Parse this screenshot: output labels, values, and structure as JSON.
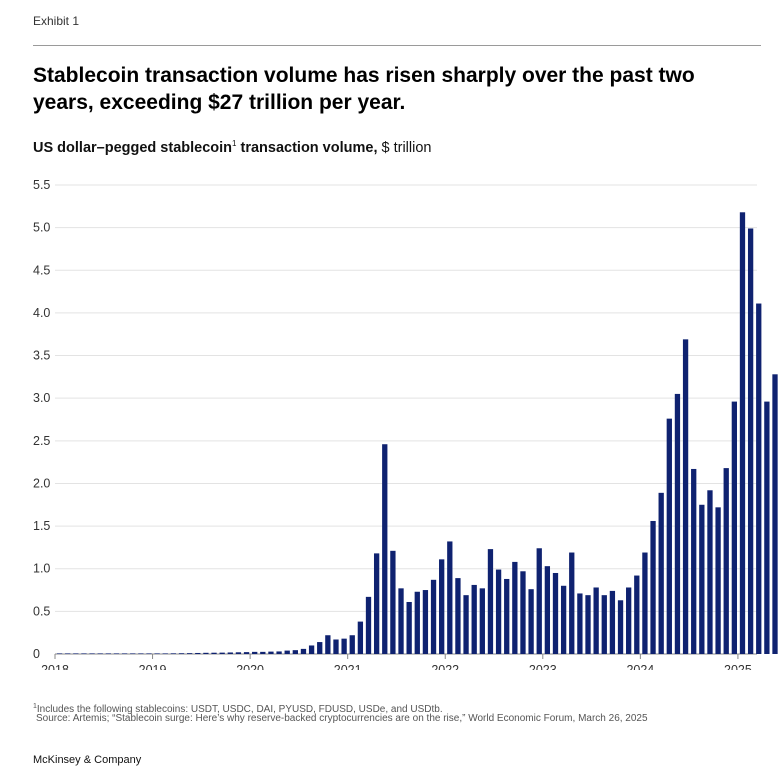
{
  "exhibit_label": "Exhibit 1",
  "headline": "Stablecoin transaction volume has risen sharply over the past two years, exceeding $27 trillion per year.",
  "subtitle_bold": "US dollar–pegged stablecoin",
  "subtitle_sup": "1",
  "subtitle_bold_tail": " transaction volume,",
  "subtitle_unit": " $ trillion",
  "footnote_sup": "1",
  "footnote": "Includes the following stablecoins: USDT, USDC, DAI, PYUSD, FDUSD, USDe, and USDtb.",
  "source": "Source: Artemis; “Stablecoin surge: Here’s why reserve-backed cryptocurrencies are on the rise,” World Economic Forum, March 26, 2025",
  "brand": "McKinsey & Company",
  "colors": {
    "bar": "#0f2270",
    "grid": "#e3e3e3",
    "axis": "#888888"
  },
  "chart_data": {
    "type": "bar",
    "title": "US dollar–pegged stablecoin transaction volume, $ trillion",
    "xlabel": "",
    "ylabel": "$ trillion",
    "ylim": [
      0,
      5.5
    ],
    "yticks": [
      "0",
      "0.5",
      "1.0",
      "1.5",
      "2.0",
      "2.5",
      "3.0",
      "3.5",
      "4.0",
      "4.5",
      "5.0",
      "5.5"
    ],
    "xticks": [
      "2018",
      "2019",
      "2020",
      "2021",
      "2022",
      "2023",
      "2024",
      "2025"
    ],
    "x_start": "2018-01",
    "frequency": "monthly",
    "grid": true,
    "values": [
      0.003,
      0.003,
      0.003,
      0.003,
      0.003,
      0.003,
      0.004,
      0.004,
      0.004,
      0.004,
      0.005,
      0.005,
      0.006,
      0.007,
      0.008,
      0.009,
      0.01,
      0.012,
      0.014,
      0.015,
      0.016,
      0.018,
      0.02,
      0.022,
      0.025,
      0.025,
      0.028,
      0.03,
      0.04,
      0.045,
      0.06,
      0.1,
      0.14,
      0.22,
      0.17,
      0.18,
      0.22,
      0.38,
      0.67,
      1.18,
      2.46,
      1.21,
      0.77,
      0.61,
      0.73,
      0.75,
      0.87,
      1.11,
      1.32,
      0.89,
      0.69,
      0.81,
      0.77,
      1.23,
      0.99,
      0.88,
      1.08,
      0.97,
      0.76,
      1.24,
      1.03,
      0.95,
      0.8,
      1.19,
      0.71,
      0.69,
      0.78,
      0.69,
      0.74,
      0.63,
      0.78,
      0.92,
      1.19,
      1.56,
      1.89,
      2.76,
      3.05,
      3.69,
      2.17,
      1.75,
      1.92,
      1.72,
      2.18,
      2.96,
      5.18,
      4.99,
      4.11,
      2.96,
      3.28
    ]
  }
}
